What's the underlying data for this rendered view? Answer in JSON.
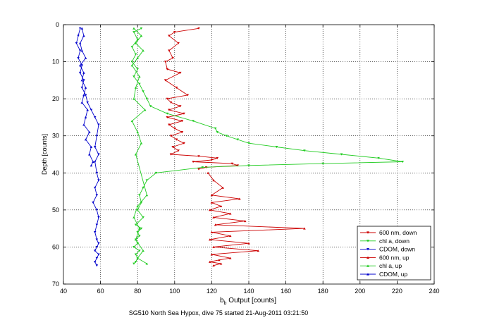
{
  "chart_data": {
    "type": "line",
    "footer": "SG510 North Sea Hypox, dive 75 started 21-Aug-2011 03:21:50",
    "xlabel": "b_b Output [counts]",
    "ylabel": "Depth [counts]",
    "xlim": [
      40,
      240
    ],
    "ylim": [
      0,
      70
    ],
    "y_reversed": true,
    "grid": true,
    "legend_position": "bottom-right",
    "x_ticks": [
      "40",
      "60",
      "80",
      "100",
      "120",
      "140",
      "160",
      "180",
      "200",
      "220",
      "240"
    ],
    "y_ticks": [
      "0",
      "10",
      "20",
      "30",
      "40",
      "50",
      "60",
      "70"
    ],
    "series": [
      {
        "name": "600 nm, down",
        "color": "#cc0000",
        "marker": "down",
        "x": [
          113,
          100,
          97,
          102,
          97,
          99,
          95,
          96,
          103,
          95,
          101,
          107,
          96,
          98,
          103,
          97,
          105,
          96,
          104,
          97,
          100,
          104,
          98,
          101,
          105,
          99,
          102,
          98,
          113,
          123,
          120,
          110,
          131,
          134,
          117,
          113
        ],
        "y": [
          1,
          2,
          3,
          5,
          7,
          9,
          10,
          12,
          13,
          15,
          17,
          19,
          20,
          21,
          22,
          23,
          24,
          25,
          26,
          27,
          28,
          29,
          30,
          31,
          32,
          33,
          34,
          35,
          35.5,
          36,
          36.5,
          37,
          37.5,
          38,
          38.5,
          39
        ]
      },
      {
        "name": "chl a, down",
        "color": "#22cc22",
        "marker": "down",
        "x": [
          82,
          78,
          80,
          77,
          79,
          77,
          80,
          78,
          81,
          83,
          85,
          87,
          96,
          110,
          122,
          123,
          128,
          134,
          140,
          155,
          170,
          190,
          210,
          223,
          180,
          140,
          115,
          90,
          85,
          83,
          81,
          82,
          80,
          83,
          79,
          82,
          80,
          81,
          79,
          80,
          78,
          81,
          79,
          80,
          79,
          78
        ],
        "y": [
          1,
          2,
          4,
          6,
          8,
          10,
          12,
          14,
          16,
          18,
          20,
          22,
          24,
          26,
          28,
          29,
          30,
          31,
          32,
          33,
          34,
          35,
          36,
          37,
          37.5,
          38,
          38.5,
          40,
          42,
          44,
          46,
          48,
          50,
          52,
          54,
          55,
          56,
          57,
          58,
          59,
          60,
          61,
          62,
          63,
          64,
          64.5
        ]
      },
      {
        "name": "CDOM, down",
        "color": "#0000cc",
        "marker": "down",
        "x": [
          49,
          48,
          47,
          49,
          48,
          50,
          49,
          51,
          50,
          52,
          53,
          55,
          57,
          59,
          58,
          57,
          59,
          57,
          58,
          59,
          57,
          58,
          56,
          58,
          59,
          58,
          57,
          58,
          59,
          58,
          57,
          59,
          58,
          57,
          58
        ],
        "y": [
          1,
          3,
          5,
          7,
          9,
          11,
          13,
          15,
          17,
          19,
          21,
          23,
          25,
          27,
          30,
          33,
          35,
          37,
          40,
          42,
          44,
          46,
          48,
          50,
          52,
          54,
          56,
          58,
          59,
          60,
          61,
          62,
          63,
          64,
          65
        ]
      },
      {
        "name": "600 nm, up",
        "color": "#cc0000",
        "marker": "up",
        "x": [
          118,
          121,
          126,
          120,
          135,
          120,
          125,
          119,
          130,
          121,
          138,
          122,
          170,
          120,
          130,
          119,
          140,
          121,
          145,
          120,
          130,
          124,
          119,
          125,
          121
        ],
        "y": [
          40,
          42,
          44,
          46,
          47,
          48,
          49,
          50,
          51,
          52,
          53,
          54,
          55,
          56,
          57,
          58,
          59,
          60,
          61,
          62,
          63,
          63.5,
          64,
          64.5,
          65
        ]
      },
      {
        "name": "chl a, up",
        "color": "#22cc22",
        "marker": "up",
        "x": [
          78,
          82,
          79,
          83,
          80,
          77,
          81,
          79,
          78,
          84,
          77,
          80,
          82,
          79,
          85,
          80,
          78,
          81,
          79,
          83,
          80,
          85
        ],
        "y": [
          1,
          3,
          5,
          7,
          9,
          11,
          14,
          17,
          20,
          23,
          26,
          29,
          32,
          35,
          46,
          49,
          52,
          55,
          58,
          61,
          63,
          64.5
        ]
      },
      {
        "name": "CDOM, up",
        "color": "#0000cc",
        "marker": "up",
        "x": [
          50,
          51,
          49,
          50,
          52,
          49,
          51,
          50,
          52,
          51,
          50,
          53,
          52,
          51,
          54,
          52,
          55,
          54,
          56,
          55
        ],
        "y": [
          1,
          3,
          5,
          7,
          9,
          11,
          13,
          15,
          17,
          19,
          21,
          23,
          25,
          27,
          29,
          31,
          33,
          35,
          37,
          38
        ]
      }
    ]
  }
}
